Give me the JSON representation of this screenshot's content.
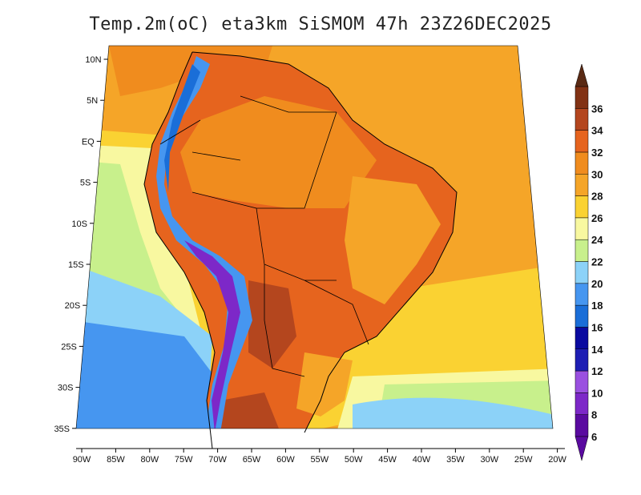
{
  "title": "Temp.2m(oC) eta3km SiSMOM 47h 23Z26DEC2025",
  "map": {
    "lat_ticks": [
      {
        "label": "10N",
        "value": 10
      },
      {
        "label": "5N",
        "value": 5
      },
      {
        "label": "EQ",
        "value": 0
      },
      {
        "label": "5S",
        "value": -5
      },
      {
        "label": "10S",
        "value": -10
      },
      {
        "label": "15S",
        "value": -15
      },
      {
        "label": "20S",
        "value": -20
      },
      {
        "label": "25S",
        "value": -25
      },
      {
        "label": "30S",
        "value": -30
      },
      {
        "label": "35S",
        "value": -35
      }
    ],
    "lon_ticks": [
      {
        "label": "90W",
        "value": -90
      },
      {
        "label": "85W",
        "value": -85
      },
      {
        "label": "80W",
        "value": -80
      },
      {
        "label": "75W",
        "value": -75
      },
      {
        "label": "70W",
        "value": -70
      },
      {
        "label": "65W",
        "value": -65
      },
      {
        "label": "60W",
        "value": -60
      },
      {
        "label": "55W",
        "value": -55
      },
      {
        "label": "50W",
        "value": -50
      },
      {
        "label": "45W",
        "value": -45
      },
      {
        "label": "40W",
        "value": -40
      },
      {
        "label": "35W",
        "value": -35
      },
      {
        "label": "30W",
        "value": -30
      },
      {
        "label": "25W",
        "value": -25
      },
      {
        "label": "20W",
        "value": -20
      }
    ]
  },
  "colorbar": {
    "levels": [
      {
        "label": "6",
        "color": "#5a0aa0"
      },
      {
        "label": "8",
        "color": "#7d28c8"
      },
      {
        "label": "10",
        "color": "#9a50e0"
      },
      {
        "label": "12",
        "color": "#1e1eb4"
      },
      {
        "label": "14",
        "color": "#0a0aa0"
      },
      {
        "label": "16",
        "color": "#1a6ed8"
      },
      {
        "label": "18",
        "color": "#4696f0"
      },
      {
        "label": "20",
        "color": "#8cd2f8"
      },
      {
        "label": "22",
        "color": "#c8f08c"
      },
      {
        "label": "24",
        "color": "#f8f8a0"
      },
      {
        "label": "26",
        "color": "#fad232"
      },
      {
        "label": "28",
        "color": "#f5a528"
      },
      {
        "label": "30",
        "color": "#f08c1e"
      },
      {
        "label": "32",
        "color": "#e6641e"
      },
      {
        "label": "34",
        "color": "#b4461e"
      },
      {
        "label": "36",
        "color": "#823214"
      }
    ],
    "top_color": "#5a2a14",
    "bottom_color": "#5a0aa0"
  }
}
